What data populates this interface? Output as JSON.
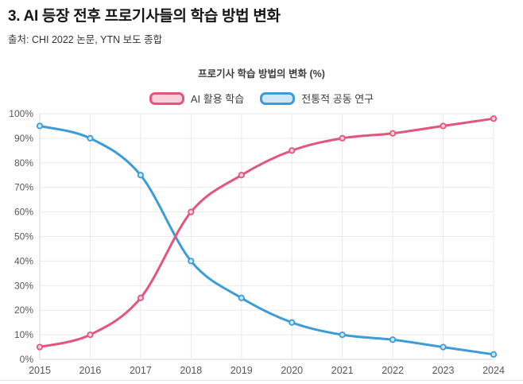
{
  "page": {
    "title": "3. AI 등장 전후 프로기사들의 학습 방법 변화",
    "source": "출처: CHI 2022 논문, YTN 보도 종합"
  },
  "chart_data": {
    "type": "line",
    "title": "프로기사 학습 방법의 변화 (%)",
    "categories": [
      "2015",
      "2016",
      "2017",
      "2018",
      "2019",
      "2020",
      "2021",
      "2022",
      "2023",
      "2024"
    ],
    "series": [
      {
        "name": "AI 활용 학습",
        "color": "#e2567b",
        "fill_color": "#f7d0db",
        "values": [
          5,
          10,
          25,
          60,
          75,
          85,
          90,
          92,
          95,
          98
        ]
      },
      {
        "name": "전통적 공동 연구",
        "color": "#3c9cd7",
        "fill_color": "#cde7f7",
        "values": [
          95,
          90,
          75,
          40,
          25,
          15,
          10,
          8,
          5,
          2
        ]
      }
    ],
    "ylim": [
      0,
      100
    ],
    "ytick_labels": [
      "0%",
      "10%",
      "20%",
      "30%",
      "40%",
      "50%",
      "60%",
      "70%",
      "80%",
      "90%",
      "100%"
    ],
    "grid": true,
    "legend_position": "top",
    "curve": "smooth"
  },
  "colors": {
    "gridline": "#e9e9e9",
    "axis_line": "#d4d4d4",
    "tick_text": "#565656"
  }
}
